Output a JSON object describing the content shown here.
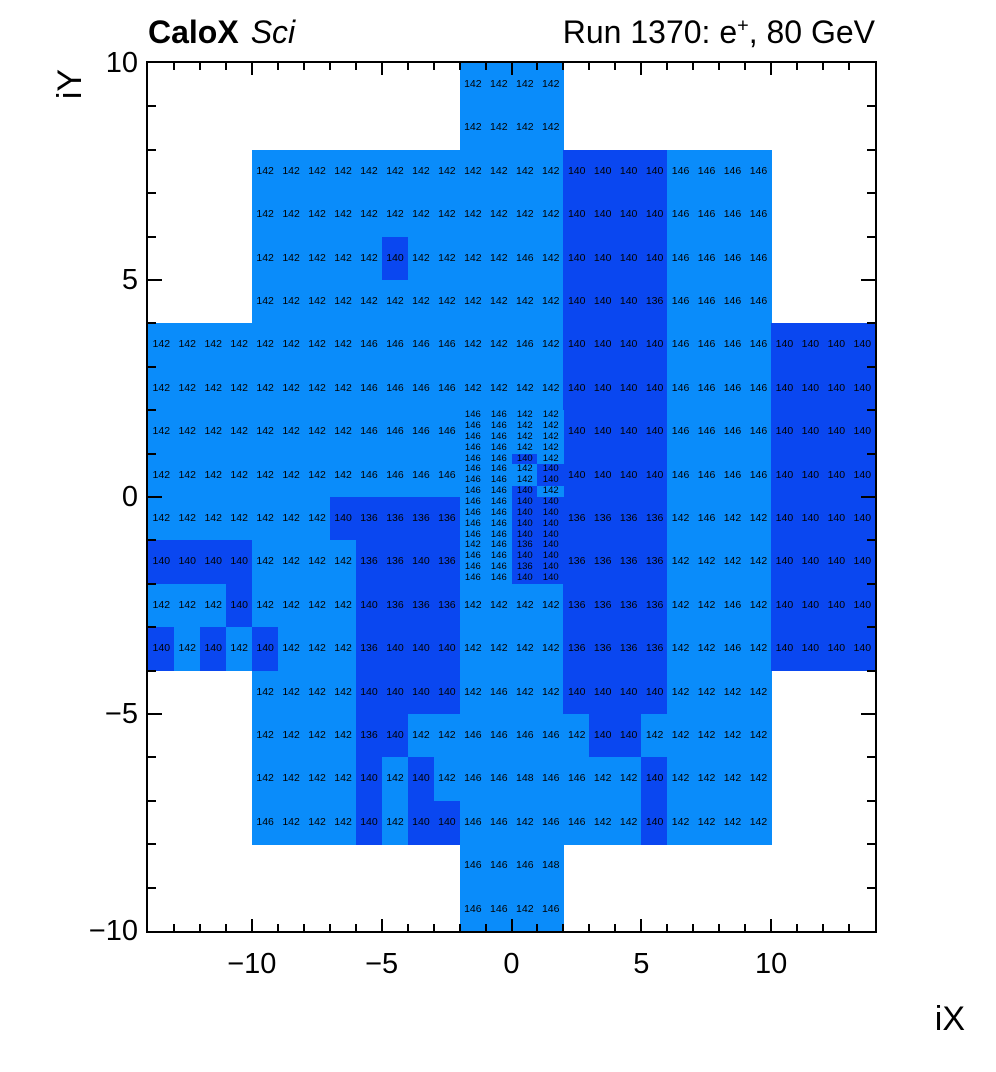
{
  "title": {
    "experiment": "CaloX",
    "qualifier": "Sci",
    "right_prefix": "Run 1370: e",
    "right_sup": "+",
    "right_suffix": ", 80 GeV"
  },
  "axes": {
    "x": {
      "title": "iX",
      "range": [
        -14,
        14
      ],
      "major_ticks": [
        -10,
        -5,
        0,
        5,
        10
      ],
      "tick_labels": [
        "−10",
        "−5",
        "0",
        "5",
        "10"
      ],
      "minor_step": 1
    },
    "y": {
      "title": "iY",
      "range": [
        -10,
        10
      ],
      "major_ticks": [
        10,
        5,
        0,
        -5,
        -10
      ],
      "tick_labels": [
        "10",
        "5",
        "0",
        "−5",
        "−10"
      ],
      "minor_step": 1
    }
  },
  "colors": {
    "low_cell": "#0a47f0",
    "high_cell": "#0a8cfa",
    "low_max_value": 140,
    "cell_text": "#000000",
    "frame": "#000000",
    "background": "#ffffff"
  },
  "chart_data": {
    "type": "heatmap",
    "title": "CaloX Sci — Run 1370: e+, 80 GeV",
    "xlabel": "iX",
    "ylabel": "iY",
    "x_range": [
      -14,
      14
    ],
    "y_range": [
      -10,
      10
    ],
    "value_legend": "each cell shows its timing/ADC value; values 136/140 drawn dark blue, 142/146/148 light blue",
    "rows": [
      {
        "y": 10,
        "segs": [
          [
            -2,
            [
              142,
              142,
              142,
              142
            ]
          ]
        ]
      },
      {
        "y": 9,
        "segs": [
          [
            -2,
            [
              142,
              142,
              142,
              142
            ]
          ]
        ]
      },
      {
        "y": 8,
        "segs": [
          [
            -10,
            [
              142,
              142,
              142,
              142,
              142,
              142,
              142,
              142,
              142,
              142,
              142,
              142,
              140,
              140,
              140,
              140,
              146,
              146,
              146,
              146
            ]
          ]
        ]
      },
      {
        "y": 7,
        "segs": [
          [
            -10,
            [
              142,
              142,
              142,
              142,
              142,
              142,
              142,
              142,
              142,
              142,
              142,
              142,
              140,
              140,
              140,
              140,
              146,
              146,
              146,
              146
            ]
          ]
        ]
      },
      {
        "y": 6,
        "segs": [
          [
            -10,
            [
              142,
              142,
              142,
              142,
              142,
              140,
              142,
              142,
              142,
              142,
              146,
              142,
              140,
              140,
              140,
              140,
              146,
              146,
              146,
              146
            ]
          ]
        ]
      },
      {
        "y": 5,
        "segs": [
          [
            -10,
            [
              142,
              142,
              142,
              142,
              142,
              142,
              142,
              142,
              142,
              142,
              142,
              142,
              140,
              140,
              140,
              136,
              146,
              146,
              146,
              146
            ]
          ]
        ]
      },
      {
        "y": 4,
        "segs": [
          [
            -14,
            [
              142,
              142,
              142,
              142,
              142,
              142,
              142,
              142,
              146,
              146,
              146,
              146,
              142,
              142,
              146,
              142,
              140,
              140,
              140,
              140,
              146,
              146,
              146,
              146,
              140,
              140,
              140,
              140
            ]
          ]
        ]
      },
      {
        "y": 3,
        "segs": [
          [
            -14,
            [
              142,
              142,
              142,
              142,
              142,
              142,
              142,
              142,
              146,
              146,
              146,
              146,
              142,
              142,
              142,
              142,
              140,
              140,
              140,
              140,
              146,
              146,
              146,
              146,
              140,
              140,
              140,
              140
            ]
          ]
        ]
      },
      {
        "y": 2,
        "segs": [
          [
            -14,
            [
              142,
              142,
              142,
              142,
              142,
              142,
              142,
              142,
              146,
              146,
              146,
              146
            ]
          ],
          [
            2,
            [
              140,
              140,
              140,
              140,
              146,
              146,
              146,
              146,
              140,
              140,
              140,
              140
            ]
          ]
        ]
      },
      {
        "y": 1,
        "segs": [
          [
            -14,
            [
              142,
              142,
              142,
              142,
              142,
              142,
              142,
              142,
              146,
              146,
              146,
              146
            ]
          ],
          [
            2,
            [
              140,
              140,
              140,
              140,
              146,
              146,
              146,
              146,
              140,
              140,
              140,
              140
            ]
          ]
        ]
      },
      {
        "y": 0,
        "segs": [
          [
            -14,
            [
              142,
              142,
              142,
              142,
              142,
              142,
              142,
              140,
              136,
              136,
              136,
              136
            ]
          ],
          [
            2,
            [
              136,
              136,
              136,
              136,
              142,
              146,
              142,
              142,
              140,
              140,
              140,
              140
            ]
          ]
        ]
      },
      {
        "y": -1,
        "segs": [
          [
            -14,
            [
              140,
              140,
              140,
              140,
              142,
              142,
              142,
              142,
              136,
              136,
              140,
              136
            ]
          ],
          [
            2,
            [
              136,
              136,
              136,
              136,
              142,
              142,
              142,
              142,
              140,
              140,
              140,
              140
            ]
          ]
        ]
      },
      {
        "y": -2,
        "segs": [
          [
            -14,
            [
              142,
              142,
              142,
              140,
              142,
              142,
              142,
              142,
              140,
              136,
              136,
              136,
              142,
              142,
              142,
              142,
              136,
              136,
              136,
              136,
              142,
              142,
              146,
              142,
              140,
              140,
              140,
              140
            ]
          ]
        ]
      },
      {
        "y": -3,
        "segs": [
          [
            -14,
            [
              140,
              142,
              140,
              142,
              140,
              142,
              142,
              142,
              136,
              140,
              140,
              140,
              142,
              142,
              142,
              142,
              136,
              136,
              136,
              136,
              142,
              142,
              146,
              142,
              140,
              140,
              140,
              140
            ]
          ]
        ]
      },
      {
        "y": -4,
        "segs": [
          [
            -10,
            [
              142,
              142,
              142,
              142,
              140,
              140,
              140,
              140,
              142,
              146,
              142,
              142,
              140,
              140,
              140,
              140,
              142,
              142,
              142,
              142
            ]
          ]
        ]
      },
      {
        "y": -5,
        "segs": [
          [
            -10,
            [
              142,
              142,
              142,
              142,
              136,
              140,
              142,
              142,
              146,
              146,
              146,
              146,
              142,
              140,
              140,
              142,
              142,
              142,
              142,
              142
            ]
          ]
        ]
      },
      {
        "y": -6,
        "segs": [
          [
            -10,
            [
              142,
              142,
              142,
              142,
              140,
              142,
              140,
              142,
              146,
              146,
              148,
              146,
              146,
              142,
              142,
              140,
              142,
              142,
              142,
              142
            ]
          ]
        ]
      },
      {
        "y": -7,
        "segs": [
          [
            -10,
            [
              146,
              142,
              142,
              142,
              140,
              142,
              140,
              140,
              146,
              146,
              142,
              146,
              146,
              142,
              142,
              140,
              142,
              142,
              142,
              142
            ]
          ]
        ]
      },
      {
        "y": -8,
        "segs": [
          [
            -2,
            [
              146,
              146,
              146,
              148
            ]
          ]
        ]
      },
      {
        "y": -9,
        "segs": [
          [
            -2,
            [
              146,
              146,
              142,
              146
            ]
          ]
        ]
      }
    ],
    "fine_block": {
      "x0": -2,
      "x1": 2,
      "y_top": 2,
      "cell_dy": 0.25,
      "rows": [
        [
          146,
          146,
          142,
          142
        ],
        [
          146,
          146,
          142,
          142
        ],
        [
          146,
          146,
          142,
          142
        ],
        [
          146,
          146,
          142,
          142
        ],
        [
          146,
          146,
          140,
          142
        ],
        [
          146,
          146,
          142,
          140
        ],
        [
          146,
          146,
          142,
          140
        ],
        [
          146,
          146,
          140,
          142
        ],
        [
          146,
          146,
          140,
          140
        ],
        [
          146,
          146,
          140,
          140
        ],
        [
          146,
          146,
          140,
          140
        ],
        [
          146,
          146,
          140,
          140
        ],
        [
          142,
          146,
          136,
          140
        ],
        [
          146,
          146,
          140,
          140
        ],
        [
          146,
          146,
          136,
          140
        ],
        [
          146,
          146,
          140,
          140
        ]
      ]
    }
  }
}
